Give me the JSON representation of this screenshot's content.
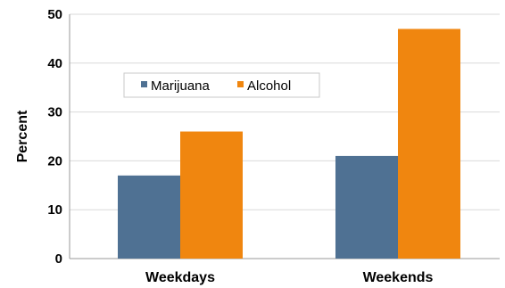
{
  "chart_data": {
    "type": "bar",
    "title": "",
    "xlabel": "",
    "ylabel": "Percent",
    "categories": [
      "Weekdays",
      "Weekends"
    ],
    "series": [
      {
        "name": "Marijuana",
        "values": [
          17,
          21
        ],
        "color": "#4f7193"
      },
      {
        "name": "Alcohol",
        "values": [
          26,
          47
        ],
        "color": "#f0860f"
      }
    ],
    "ylim": [
      0,
      50
    ],
    "yticks": [
      0,
      10,
      20,
      30,
      40,
      50
    ],
    "grid": true,
    "legend_placement": "upper-left inside plot"
  }
}
